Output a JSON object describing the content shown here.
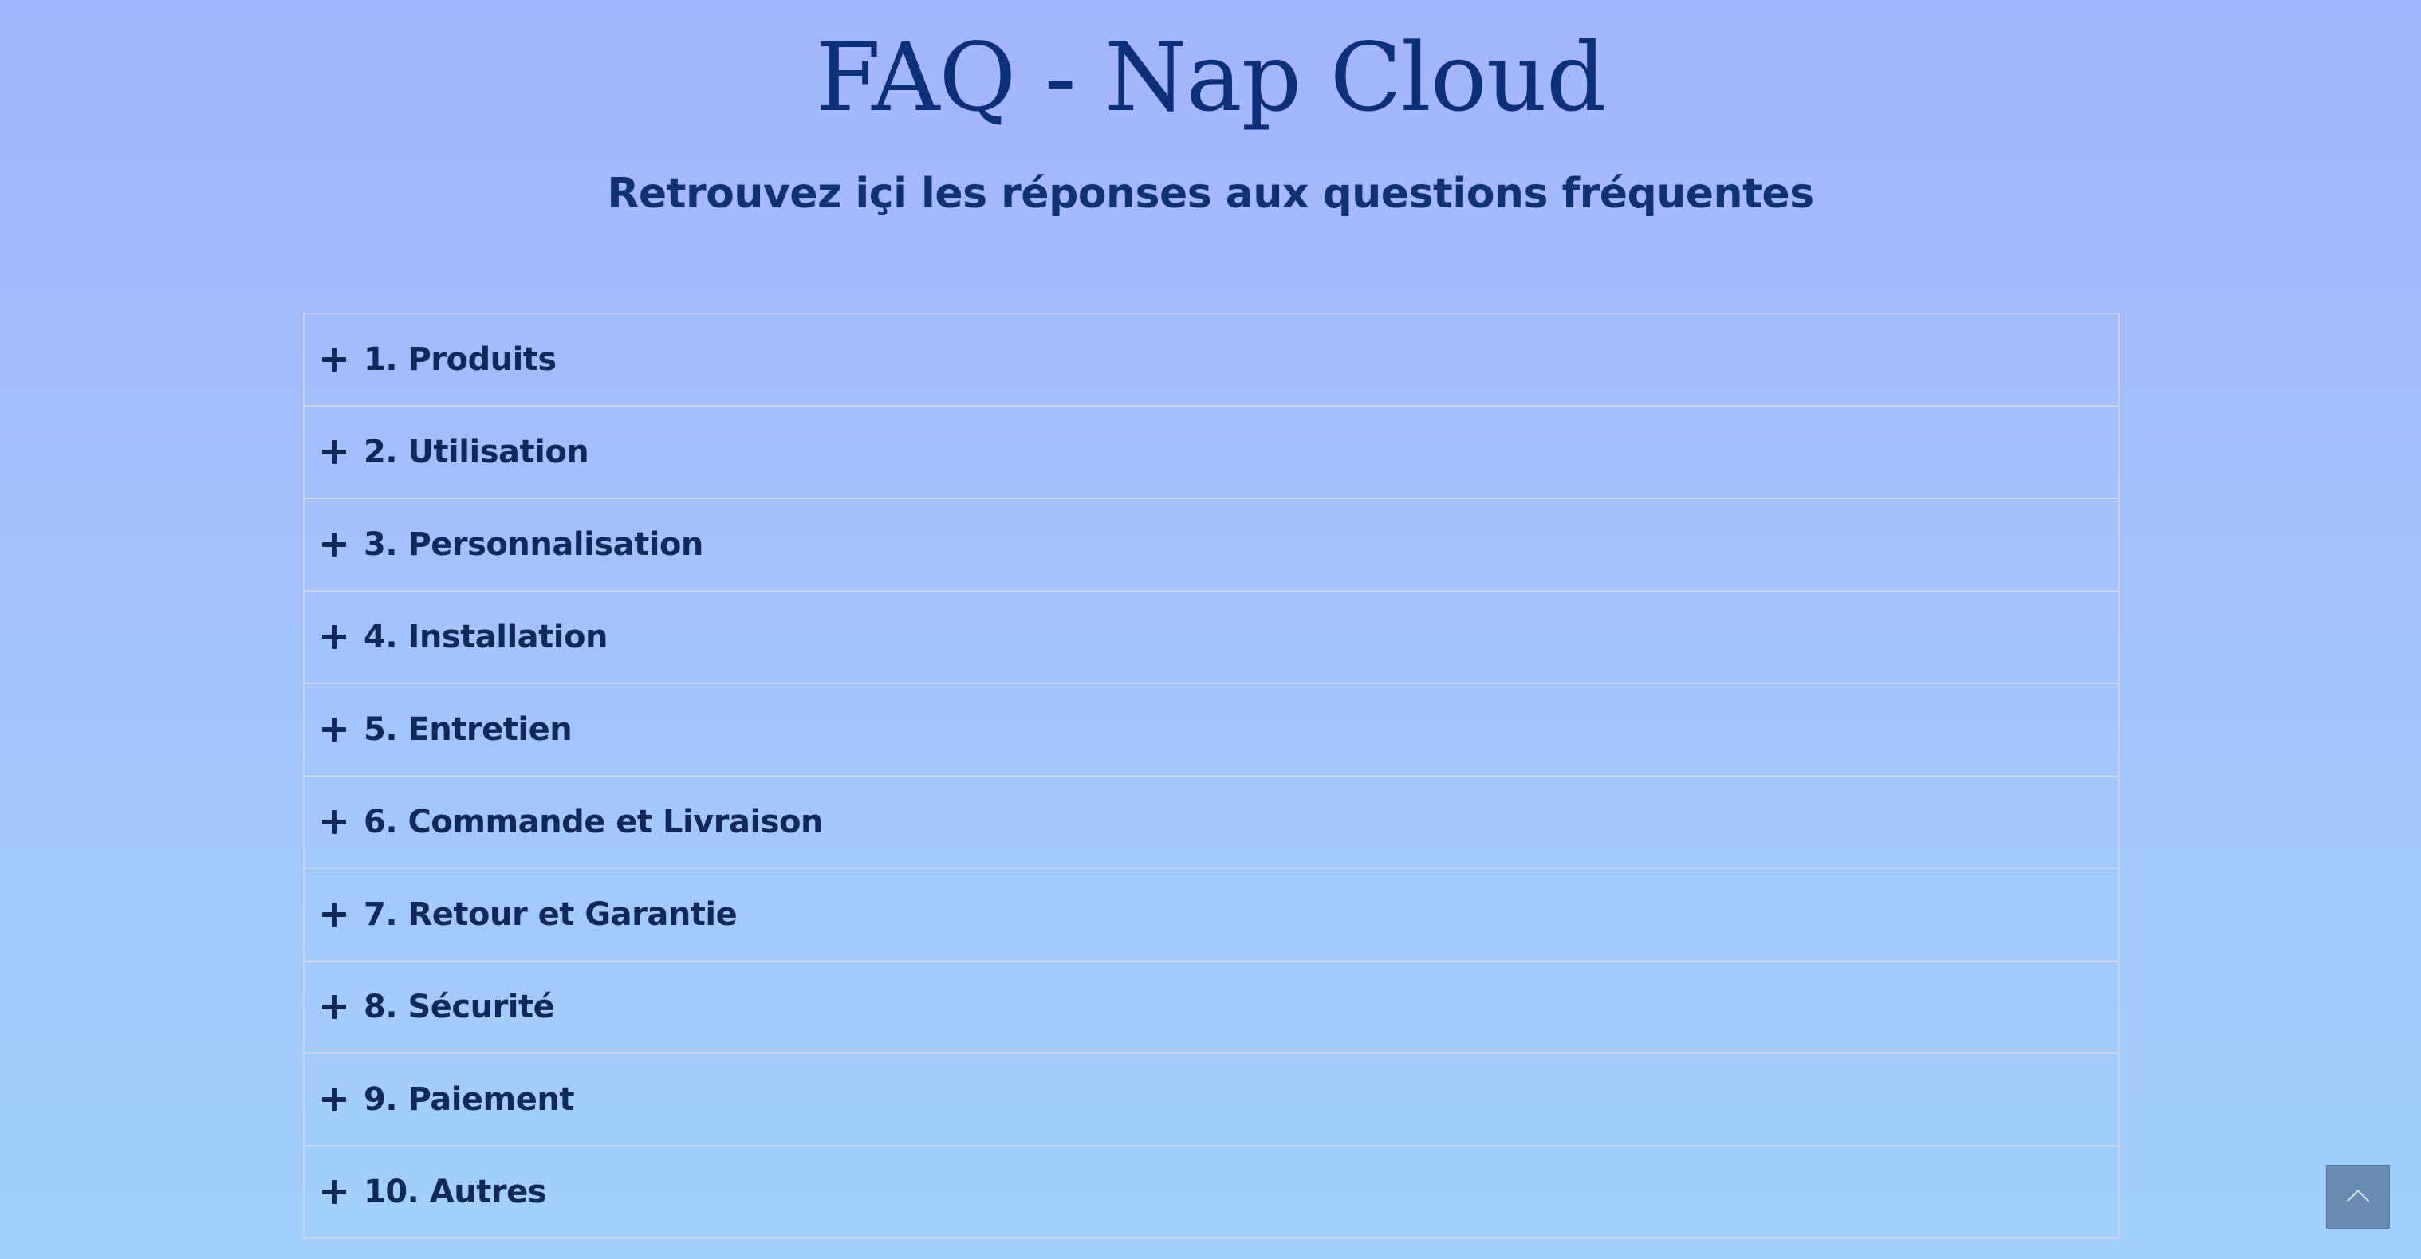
{
  "header": {
    "title": "FAQ - Nap Cloud",
    "subtitle": "Retrouvez içi les réponses aux questions fréquentes"
  },
  "faq": {
    "items": [
      {
        "label": "1. Produits",
        "icon": "plus-icon"
      },
      {
        "label": "2. Utilisation",
        "icon": "plus-icon"
      },
      {
        "label": "3. Personnalisation",
        "icon": "plus-icon"
      },
      {
        "label": "4. Installation",
        "icon": "plus-icon"
      },
      {
        "label": "5. Entretien",
        "icon": "plus-icon"
      },
      {
        "label": "6. Commande et Livraison",
        "icon": "plus-icon"
      },
      {
        "label": "7. Retour et Garantie",
        "icon": "plus-icon"
      },
      {
        "label": "8. Sécurité",
        "icon": "plus-icon"
      },
      {
        "label": "9. Paiement",
        "icon": "plus-icon"
      },
      {
        "label": "10. Autres",
        "icon": "plus-icon"
      }
    ]
  },
  "scroll_top": {
    "icon": "chevron-up-icon"
  },
  "colors": {
    "background_top": "#a3b5fc",
    "background_bottom": "#a3d0fb",
    "title": "#0c2f7a",
    "text": "#0f2a5a",
    "border": "#c9d4ec",
    "scroll_button": "#6c8bb0"
  }
}
